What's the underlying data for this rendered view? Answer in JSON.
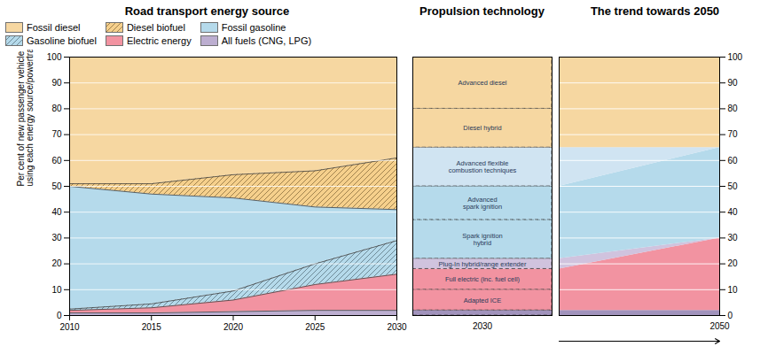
{
  "chart_data": [
    {
      "type": "area",
      "title": "Road transport energy source",
      "ylabel": "Per cent of new passenger vehicle sales\nusing each energy source/powertrain",
      "x": [
        2010,
        2015,
        2020,
        2025,
        2030
      ],
      "stacked": true,
      "series": [
        {
          "name": "All fuels (CNG, LPG)",
          "color": "#B0A0C8",
          "values": [
            1.0,
            1.0,
            1.5,
            2.0,
            2.0
          ]
        },
        {
          "name": "Electric energy",
          "color": "#F08090",
          "values": [
            1.0,
            2.0,
            4.5,
            10.0,
            14.0
          ]
        },
        {
          "name": "Gasoline biofuel",
          "color": "#A8D4E8",
          "line_style": "hatched",
          "values": [
            0.5,
            1.5,
            3.5,
            8.0,
            13.0
          ]
        },
        {
          "name": "Fossil gasoline",
          "color": "#A8D4E8",
          "values": [
            47.5,
            42.5,
            36.0,
            22.0,
            12.0
          ]
        },
        {
          "name": "Diesel biofuel",
          "color": "#F5C878",
          "line_style": "hatched",
          "values": [
            1.0,
            4.0,
            9.0,
            14.0,
            20.0
          ]
        },
        {
          "name": "Fossil diesel",
          "color": "#F5D090",
          "values": [
            49,
            49,
            45.5,
            44,
            39
          ]
        }
      ],
      "xlim": [
        2010,
        2030
      ],
      "xticks": [
        2010,
        2015,
        2020,
        2025,
        2030
      ],
      "ylim": [
        0,
        100
      ],
      "yticks": [
        0,
        10,
        20,
        30,
        40,
        50,
        60,
        70,
        80,
        90,
        100
      ],
      "grid": true,
      "legend": "upper left"
    },
    {
      "type": "bar",
      "title": "Propulsion technology",
      "categories": [
        "2030"
      ],
      "stacked": true,
      "line_style": "dashed",
      "tick_labels": "x",
      "ylim": [
        0,
        100
      ],
      "series": [
        {
          "color": "#9080B0",
          "values": [
            2
          ]
        },
        {
          "name": "Adapted ICE",
          "color": "#F08090",
          "values": [
            8
          ]
        },
        {
          "name": "Full electric (inc. fuel cell)",
          "color": "#F08090",
          "values": [
            8
          ]
        },
        {
          "name": "Plug-In hybrid/range extender",
          "color": "#C8B8D8",
          "values": [
            4
          ]
        },
        {
          "name": "Spark ignition\nhybrid",
          "color": "#A8D4E8",
          "values": [
            15
          ]
        },
        {
          "name": "Advanced\nspark ignition",
          "color": "#A8D4E8",
          "values": [
            13
          ]
        },
        {
          "name": "Advanced flexible\ncombustion techniques",
          "color": "#C8DFF0",
          "values": [
            15
          ]
        },
        {
          "name": "Diesel hybrid",
          "color": "#F5D090",
          "values": [
            15
          ]
        },
        {
          "name": "Advanced diesel",
          "color": "#F5D090",
          "values": [
            20
          ]
        }
      ]
    },
    {
      "type": "area",
      "title": "The trend towards 2050",
      "categories": [
        null,
        "2050"
      ],
      "stacked": true,
      "ylim": [
        0,
        100
      ],
      "yticks": [
        0,
        10,
        20,
        30,
        40,
        50,
        60,
        70,
        80,
        90,
        100
      ],
      "grid": true,
      "series": [
        {
          "color": "#9080B0",
          "values": [
            2,
            2
          ]
        },
        {
          "color": "#F08090",
          "values": [
            16,
            28
          ]
        },
        {
          "color": "#C8B8D8",
          "values": [
            4,
            0
          ]
        },
        {
          "color": "#A8D4E8",
          "values": [
            28,
            35
          ]
        },
        {
          "color": "#C8DFF0",
          "values": [
            15,
            0
          ]
        },
        {
          "color": "#F5D090",
          "values": [
            35,
            35
          ]
        }
      ]
    }
  ]
}
